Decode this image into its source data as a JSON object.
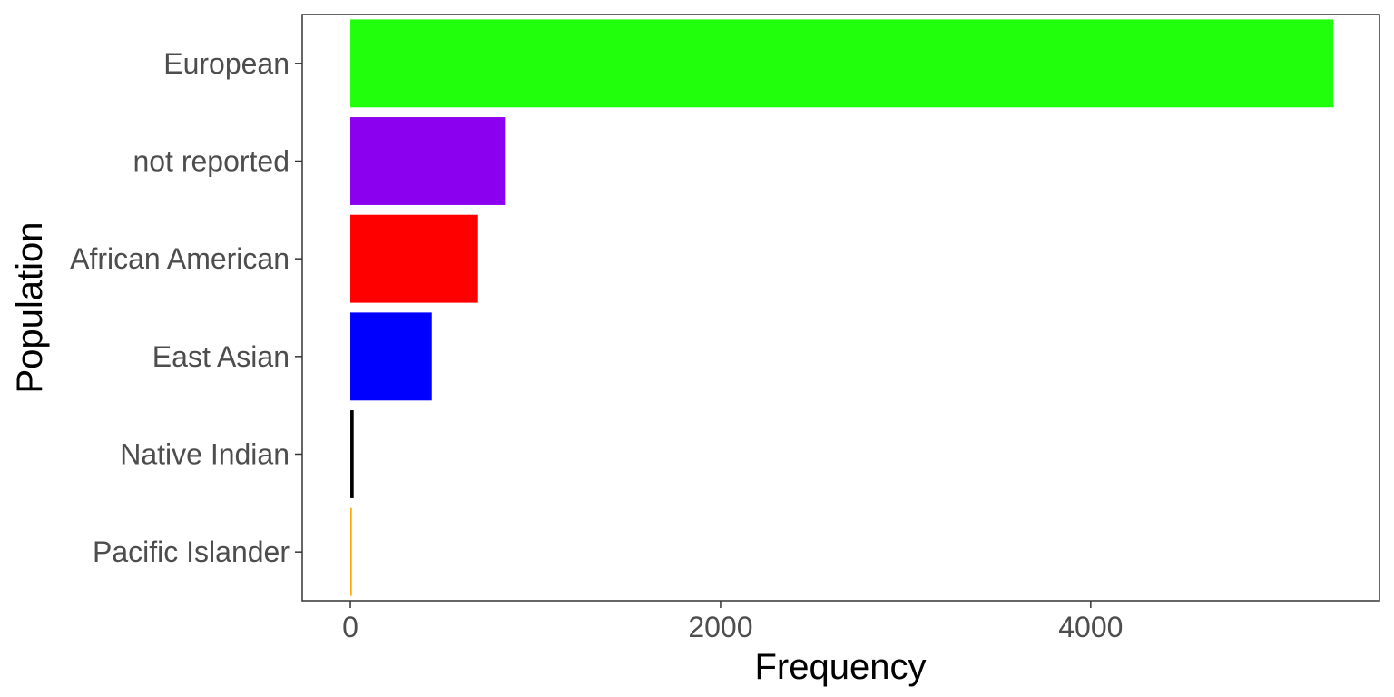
{
  "chart_data": {
    "type": "bar",
    "orientation": "horizontal",
    "categories": [
      "European",
      "not reported",
      "African American",
      "East Asian",
      "Native Indian",
      "Pacific Islander"
    ],
    "values": [
      5310,
      835,
      690,
      440,
      18,
      8
    ],
    "colors": [
      "#22ff0c",
      "#8c00f0",
      "#ff0000",
      "#0000ff",
      "#000000",
      "#ffa500"
    ],
    "xlabel": "Frequency",
    "ylabel": "Population",
    "xlim": [
      -260,
      5560
    ],
    "xticks": [
      0,
      2000,
      4000
    ],
    "xtick_labels": [
      "0",
      "2000",
      "4000"
    ],
    "grid": false,
    "legend": "none"
  }
}
